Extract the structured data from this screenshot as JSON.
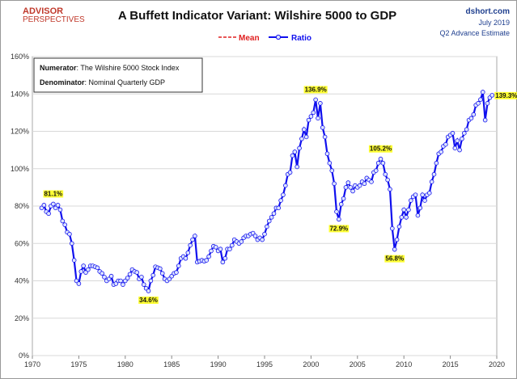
{
  "chart_data": {
    "type": "line",
    "title": "A Buffett Indicator Variant: Wilshire 5000 to GDP",
    "logo": [
      "ADVISOR",
      "PERSPECTIVES"
    ],
    "source": [
      "dshort.com",
      "July 2019",
      "Q2 Advance Estimate"
    ],
    "info_box": [
      {
        "label": "Numerator",
        "text": ": The Wilshire 5000 Stock Index"
      },
      {
        "label": "Denominator",
        "text": ": Nominal Quarterly GDP"
      }
    ],
    "extra_legend": [
      {
        "name": "Mean",
        "color": "#e02020",
        "dash": "4 2"
      }
    ],
    "xlim": [
      1970,
      2020
    ],
    "xticks": [
      1970,
      1975,
      1980,
      1985,
      1990,
      1995,
      2000,
      2005,
      2010,
      2015,
      2020
    ],
    "ylim": [
      0,
      160
    ],
    "yticks": [
      {
        "value": 0,
        "label": "0%"
      },
      {
        "value": 20,
        "label": "20%"
      },
      {
        "value": 40,
        "label": "40%"
      },
      {
        "value": 60,
        "label": "60%"
      },
      {
        "value": 80,
        "label": "80%"
      },
      {
        "value": 100,
        "label": "100%"
      },
      {
        "value": 120,
        "label": "120%"
      },
      {
        "value": 140,
        "label": "140%"
      },
      {
        "value": 160,
        "label": "160%"
      }
    ],
    "grid": true,
    "x": [
      1971,
      1971.25,
      1971.5,
      1971.75,
      1972,
      1972.25,
      1972.5,
      1972.75,
      1973,
      1973.25,
      1973.5,
      1973.75,
      1974,
      1974.25,
      1974.5,
      1974.75,
      1975,
      1975.25,
      1975.5,
      1975.75,
      1976,
      1976.25,
      1976.5,
      1976.75,
      1977,
      1977.25,
      1977.5,
      1977.75,
      1978,
      1978.25,
      1978.5,
      1978.75,
      1979,
      1979.25,
      1979.5,
      1979.75,
      1980,
      1980.25,
      1980.5,
      1980.75,
      1981,
      1981.25,
      1981.5,
      1981.75,
      1982,
      1982.25,
      1982.5,
      1982.75,
      1983,
      1983.25,
      1983.5,
      1983.75,
      1984,
      1984.25,
      1984.5,
      1984.75,
      1985,
      1985.25,
      1985.5,
      1985.75,
      1986,
      1986.25,
      1986.5,
      1986.75,
      1987,
      1987.25,
      1987.5,
      1987.75,
      1988,
      1988.25,
      1988.5,
      1988.75,
      1989,
      1989.25,
      1989.5,
      1989.75,
      1990,
      1990.25,
      1990.5,
      1990.75,
      1991,
      1991.25,
      1991.5,
      1991.75,
      1992,
      1992.25,
      1992.5,
      1992.75,
      1993,
      1993.25,
      1993.5,
      1993.75,
      1994,
      1994.25,
      1994.5,
      1994.75,
      1995,
      1995.25,
      1995.5,
      1995.75,
      1996,
      1996.25,
      1996.5,
      1996.75,
      1997,
      1997.25,
      1997.5,
      1997.75,
      1998,
      1998.25,
      1998.5,
      1998.75,
      1999,
      1999.25,
      1999.5,
      1999.75,
      2000,
      2000.25,
      2000.5,
      2000.75,
      2001,
      2001.25,
      2001.5,
      2001.75,
      2002,
      2002.25,
      2002.5,
      2002.75,
      2003,
      2003.25,
      2003.5,
      2003.75,
      2004,
      2004.25,
      2004.5,
      2004.75,
      2005,
      2005.25,
      2005.5,
      2005.75,
      2006,
      2006.25,
      2006.5,
      2006.75,
      2007,
      2007.25,
      2007.5,
      2007.75,
      2008,
      2008.25,
      2008.5,
      2008.75,
      2009,
      2009.25,
      2009.5,
      2009.75,
      2010,
      2010.25,
      2010.5,
      2010.75,
      2011,
      2011.25,
      2011.5,
      2011.75,
      2012,
      2012.25,
      2012.5,
      2012.75,
      2013,
      2013.25,
      2013.5,
      2013.75,
      2014,
      2014.25,
      2014.5,
      2014.75,
      2015,
      2015.25,
      2015.5,
      2015.75,
      2016,
      2016.25,
      2016.5,
      2016.75,
      2017,
      2017.25,
      2017.5,
      2017.75,
      2018,
      2018.25,
      2018.5,
      2018.75,
      2019,
      2019.25,
      2019.5
    ],
    "series": [
      {
        "name": "Ratio",
        "color": "#1010ee",
        "values": [
          79,
          80.5,
          77,
          76,
          80,
          81.1,
          79,
          80.5,
          78,
          72,
          70,
          66,
          65,
          60,
          51,
          40,
          38.5,
          45,
          48,
          44.5,
          46,
          48,
          48,
          47.5,
          47,
          45,
          44,
          42,
          40,
          41,
          42.5,
          38,
          38.5,
          40,
          40,
          38,
          40,
          41.5,
          43.5,
          46,
          45,
          44.5,
          41,
          42,
          38,
          36,
          34.6,
          40,
          43,
          47.5,
          47,
          46.5,
          44,
          41,
          40,
          41,
          42.5,
          44,
          44.5,
          48,
          52,
          53,
          52,
          55,
          59,
          62,
          64,
          50,
          50.5,
          51,
          50.5,
          51,
          53,
          56,
          58.5,
          58,
          56,
          57,
          50,
          52,
          57,
          57,
          59,
          62,
          61,
          60,
          61,
          63,
          64,
          64,
          65,
          65.5,
          64,
          62,
          63,
          62,
          65,
          69,
          72,
          74,
          76,
          79,
          79,
          83,
          86,
          91,
          97,
          98,
          107,
          109,
          101,
          111,
          116,
          121,
          117,
          126,
          128,
          130,
          136.9,
          127,
          135,
          122,
          117,
          108,
          103,
          99,
          92,
          77,
          72.9,
          81,
          84,
          90,
          92.5,
          90,
          88,
          91,
          90,
          91,
          93,
          92,
          95,
          94,
          93,
          98,
          99,
          103,
          105.2,
          103,
          97,
          94,
          89,
          68,
          56.8,
          62,
          69,
          74,
          78,
          74,
          78,
          83,
          85,
          86,
          75,
          79,
          86,
          83,
          86,
          87,
          93,
          97,
          103,
          108,
          109,
          112,
          113,
          117,
          118,
          119,
          111,
          115,
          110,
          116,
          119,
          121,
          126,
          127,
          129,
          134,
          135,
          137,
          141,
          126,
          135,
          138,
          139.3
        ]
      }
    ],
    "annotations": [
      {
        "label": "81.1%",
        "x": 1972.25,
        "y": 81.1,
        "position": "above"
      },
      {
        "label": "34.6%",
        "x": 1982.5,
        "y": 34.6,
        "position": "below"
      },
      {
        "label": "136.9%",
        "x": 2000.5,
        "y": 136.9,
        "position": "above"
      },
      {
        "label": "72.9%",
        "x": 2003,
        "y": 72.9,
        "position": "below"
      },
      {
        "label": "105.2%",
        "x": 2007.5,
        "y": 105.2,
        "position": "above"
      },
      {
        "label": "56.8%",
        "x": 2009,
        "y": 56.8,
        "position": "below"
      },
      {
        "label": "139.3%",
        "x": 2019.5,
        "y": 139.3,
        "position": "right"
      }
    ]
  }
}
